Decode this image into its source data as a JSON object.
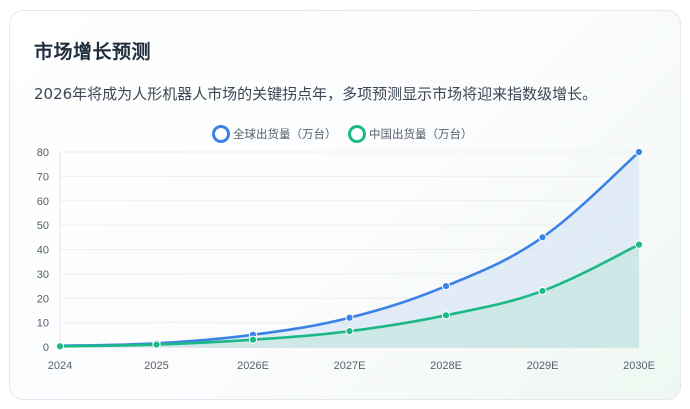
{
  "card": {
    "title": "市场增长预测",
    "subtitle": "2026年将成为人形机器人市场的关键拐点年，多项预测显示市场将迎来指数级增长。"
  },
  "chart_data": {
    "type": "line",
    "title": "",
    "xlabel": "",
    "ylabel": "",
    "categories": [
      "2024",
      "2025",
      "2026E",
      "2027E",
      "2028E",
      "2029E",
      "2030E"
    ],
    "ylim": [
      0,
      80
    ],
    "yticks": [
      0,
      10,
      20,
      30,
      40,
      50,
      60,
      70,
      80
    ],
    "grid": true,
    "legend_position": "top-center",
    "area_fill": true,
    "smooth": true,
    "series": [
      {
        "name": "全球出货量（万台）",
        "color": "#3b82e6",
        "fill_color": "#cfe0f5",
        "values": [
          0.5,
          1.5,
          5,
          12,
          25,
          45,
          80
        ]
      },
      {
        "name": "中国出货量（万台）",
        "color": "#1db887",
        "fill_color": "#bfe6dc",
        "values": [
          0.3,
          1,
          3,
          6.5,
          13,
          23,
          42
        ]
      }
    ]
  }
}
